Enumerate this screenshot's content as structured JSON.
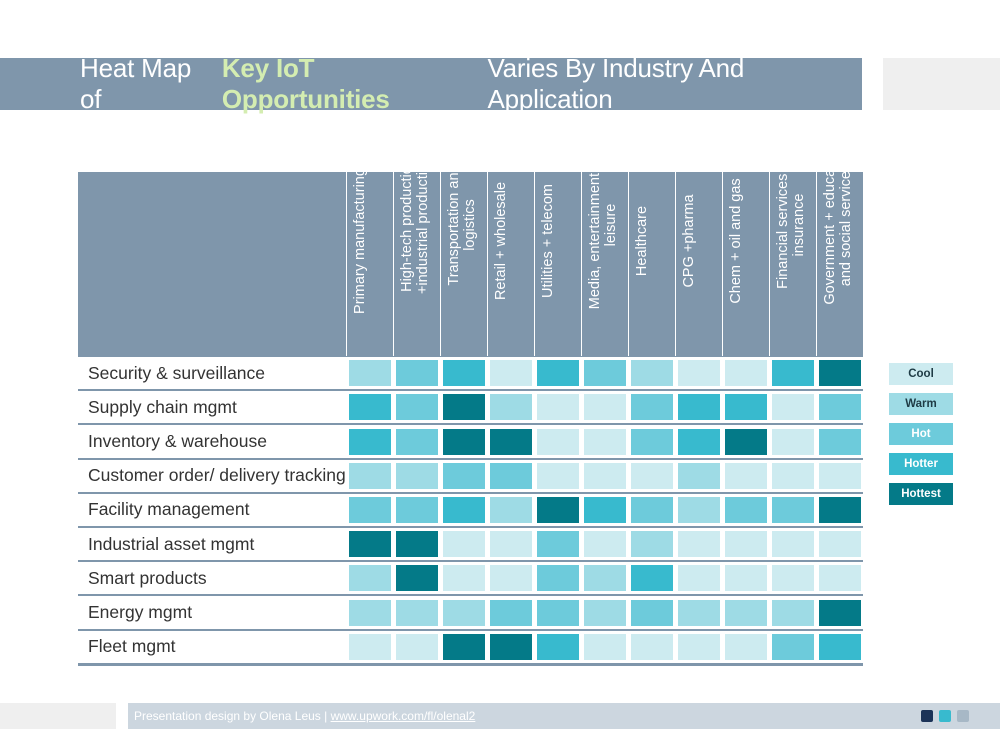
{
  "title": {
    "prefix": "Heat Map of",
    "highlight": "Key IoT Opportunities",
    "suffix": "Varies By Industry And Application"
  },
  "chart_data": {
    "type": "heatmap",
    "title": "Heat Map of Key IoT Opportunities Varies By Industry And Application",
    "columns": [
      "Primary manufacturing",
      "High-tech production +industrial production",
      "Transportation and logistics",
      "Retail + wholesale",
      "Utilities + telecom",
      "Media, entertainment, and leisure",
      "Healthcare",
      "CPG +pharma",
      "Chem + oil and gas",
      "Financial services + insurance",
      "Government + education and social services"
    ],
    "rows": [
      "Security & surveillance",
      "Supply chain mgmt",
      "Inventory & warehouse",
      "Customer order/ delivery tracking",
      "Facility management",
      "Industrial asset mgmt",
      "Smart products",
      "Energy mgmt",
      "Fleet mgmt"
    ],
    "scale": [
      "Cool",
      "Warm",
      "Hot",
      "Hotter",
      "Hottest"
    ],
    "values": [
      [
        1,
        2,
        3,
        0,
        3,
        2,
        1,
        0,
        0,
        3,
        4
      ],
      [
        3,
        2,
        4,
        1,
        0,
        0,
        2,
        3,
        3,
        0,
        2
      ],
      [
        3,
        2,
        4,
        4,
        0,
        0,
        2,
        3,
        4,
        0,
        2
      ],
      [
        1,
        1,
        2,
        2,
        0,
        0,
        0,
        1,
        0,
        0,
        0
      ],
      [
        2,
        2,
        3,
        1,
        4,
        3,
        2,
        1,
        2,
        2,
        4
      ],
      [
        4,
        4,
        0,
        0,
        2,
        0,
        1,
        0,
        0,
        0,
        0
      ],
      [
        1,
        4,
        0,
        0,
        2,
        1,
        3,
        0,
        0,
        0,
        0
      ],
      [
        1,
        1,
        1,
        2,
        2,
        1,
        2,
        1,
        1,
        1,
        4
      ],
      [
        0,
        0,
        4,
        4,
        3,
        0,
        0,
        0,
        0,
        2,
        3
      ]
    ]
  },
  "legend": {
    "items": [
      "Cool",
      "Warm",
      "Hot",
      "Hotter",
      "Hottest"
    ]
  },
  "colors": {
    "level0": "#cdebf0",
    "level1": "#9edbe5",
    "level2": "#6dcbdb",
    "level3": "#38bace",
    "level4": "#047a88",
    "header": "#7f96ab",
    "accent": "#d4edb1"
  },
  "footer": {
    "text": "Presentation design by Olena Leus |",
    "link": "www.upwork.com/fl/olenal2"
  }
}
